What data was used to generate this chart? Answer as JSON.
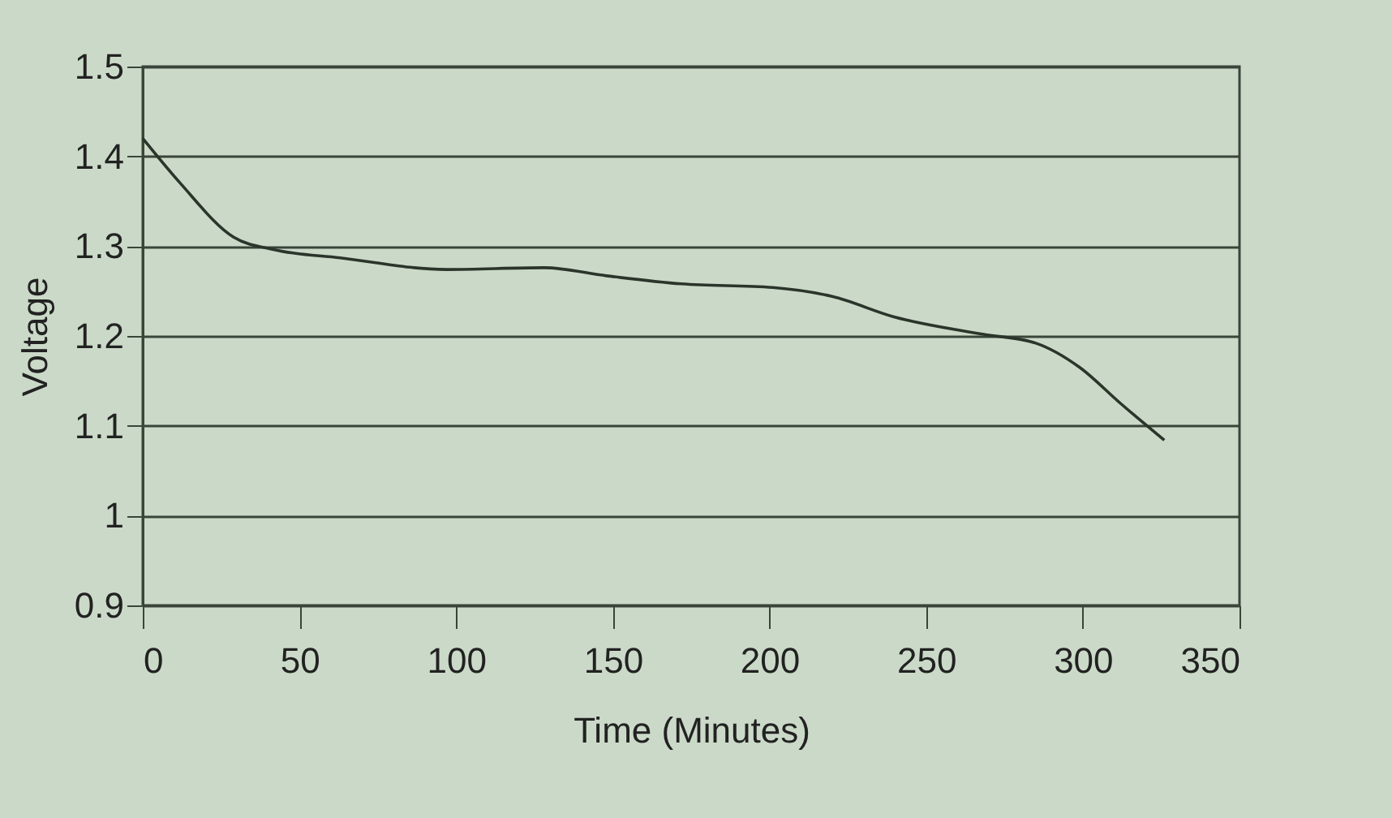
{
  "chart_data": {
    "type": "line",
    "xlabel": "Time (Minutes)",
    "ylabel": "Voltage",
    "x": [
      0,
      12,
      29,
      42,
      63,
      97,
      128,
      148,
      172,
      201,
      220,
      240,
      268,
      285,
      299,
      312,
      326
    ],
    "series": [
      {
        "color": "#2b352b",
        "values": [
          1.42,
          1.37,
          1.31,
          1.296,
          1.287,
          1.274,
          1.276,
          1.267,
          1.258,
          1.254,
          1.244,
          1.221,
          1.202,
          1.192,
          1.165,
          1.125,
          1.084
        ]
      }
    ],
    "xlim": [
      0,
      350
    ],
    "xticks": [
      0,
      50,
      100,
      150,
      200,
      250,
      300,
      350
    ],
    "ylim": [
      0.9,
      1.5
    ],
    "yticks": [
      0.9,
      1,
      1.1,
      1.2,
      1.3,
      1.4,
      1.5
    ],
    "grid": "y",
    "legend": false,
    "marker": "none",
    "line_style": "solid"
  }
}
